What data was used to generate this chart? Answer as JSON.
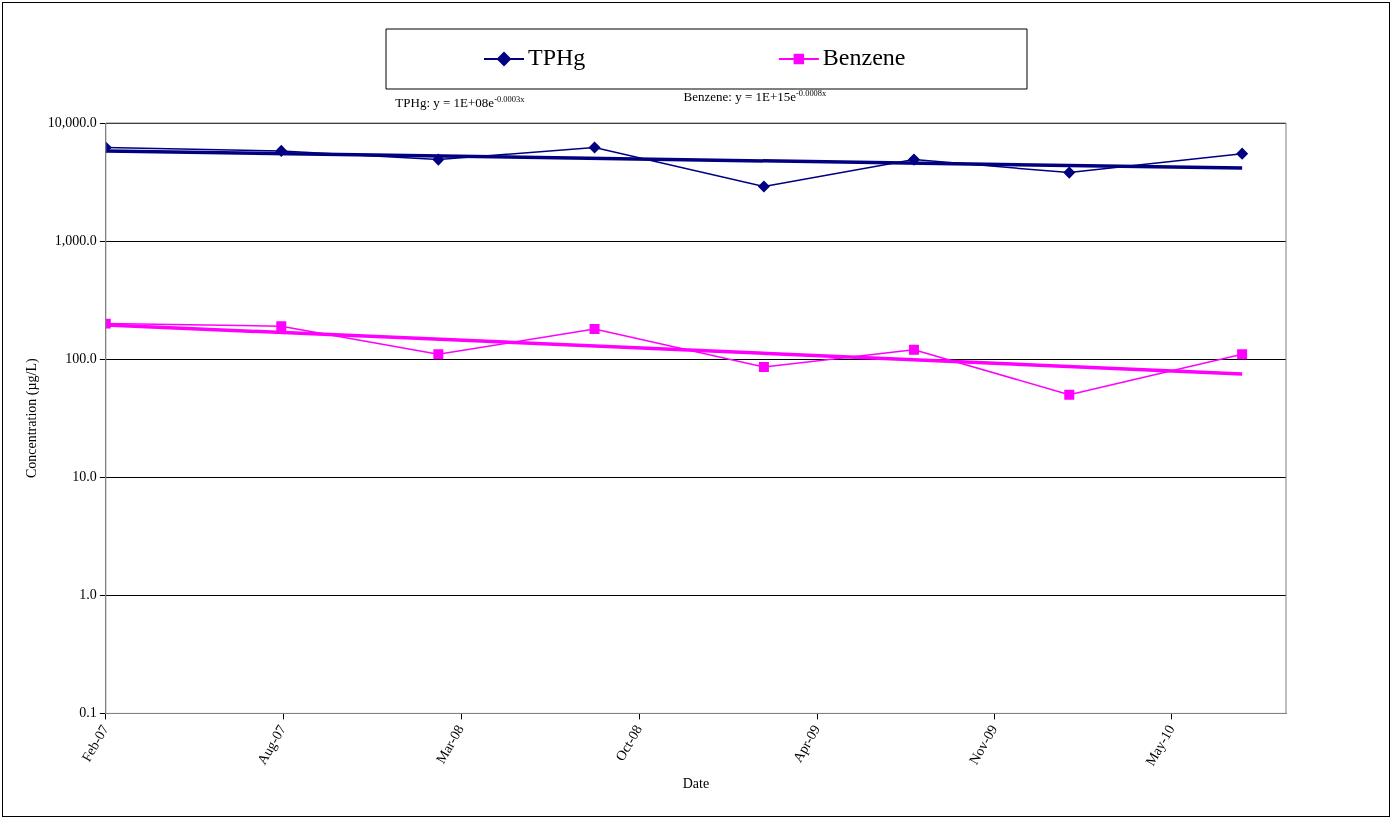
{
  "chart_data": {
    "type": "line",
    "xlabel": "Date",
    "ylabel": "Concentration (µg/L)",
    "x": [
      "2007-02-01",
      "2007-08-20",
      "2008-02-15",
      "2008-08-11",
      "2009-02-20",
      "2009-08-10",
      "2010-02-03",
      "2010-08-19"
    ],
    "series": [
      {
        "name": "TPHg",
        "color": "#000080",
        "marker": "diamond",
        "values": [
          6200,
          5800,
          4900,
          6200,
          2900,
          4900,
          3800,
          5500
        ]
      },
      {
        "name": "Benzene",
        "color": "#ff00ff",
        "marker": "square",
        "values": [
          200,
          190,
          110,
          180,
          86,
          120,
          50,
          110
        ]
      },
      {
        "type": "line",
        "color": "#000080",
        "marker": "none",
        "x": [
          "2007-02-01",
          "2010-08-19"
        ],
        "values": [
          5800,
          4150
        ]
      },
      {
        "type": "line",
        "color": "#ff00ff",
        "marker": "none",
        "x": [
          "2007-02-01",
          "2010-08-19"
        ],
        "values": [
          195,
          75
        ]
      }
    ],
    "annotations": [
      "TPHg: y = 1E+08e$^{-0.0003x}$",
      "Benzene: y = 1E+15e$^{-0.0008x}$"
    ],
    "log": "y",
    "ylim": [
      0.1,
      10000
    ],
    "yticks": [
      {
        "value": 0.1,
        "label": "0.1"
      },
      {
        "value": 1,
        "label": "1.0"
      },
      {
        "value": 10,
        "label": "10.0"
      },
      {
        "value": 100,
        "label": "100.0"
      },
      {
        "value": 1000,
        "label": "1,000.0"
      },
      {
        "value": 10000,
        "label": "10,000.0"
      }
    ],
    "xlim": [
      "2007-02-01",
      "2010-10-08"
    ],
    "xticks": [
      {
        "value": "2007-02-01",
        "label": "Feb-07"
      },
      {
        "value": "2007-08-22",
        "label": "Aug-07"
      },
      {
        "value": "2008-03-12",
        "label": "Mar-08"
      },
      {
        "value": "2008-10-01",
        "label": "Oct-08"
      },
      {
        "value": "2009-04-22",
        "label": "Apr-09"
      },
      {
        "value": "2009-11-10",
        "label": "Nov-09"
      },
      {
        "value": "2010-05-31",
        "label": "May-10"
      }
    ],
    "grid": "y",
    "legend": "top",
    "line_style": "solid"
  }
}
